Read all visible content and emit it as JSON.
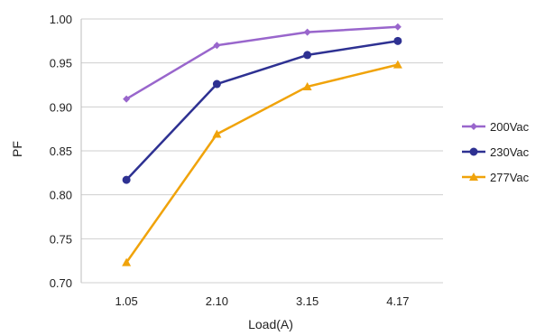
{
  "chart_data": {
    "type": "line",
    "title": "",
    "xlabel": "Load(A)",
    "ylabel": "PF",
    "categories": [
      "1.05",
      "2.10",
      "3.15",
      "4.17"
    ],
    "ylim": [
      0.7,
      1.0
    ],
    "yticks": [
      "0.70",
      "0.75",
      "0.80",
      "0.85",
      "0.90",
      "0.95",
      "1.00"
    ],
    "grid": true,
    "legend_position": "right",
    "series": [
      {
        "name": "200Vac",
        "values": [
          0.909,
          0.97,
          0.985,
          0.991
        ],
        "color": "#9966cc",
        "marker": "diamond"
      },
      {
        "name": "230Vac",
        "values": [
          0.817,
          0.926,
          0.959,
          0.975
        ],
        "color": "#2e3192",
        "marker": "circle"
      },
      {
        "name": "277Vac",
        "values": [
          0.723,
          0.869,
          0.923,
          0.948
        ],
        "color": "#f0a30a",
        "marker": "triangle"
      }
    ]
  }
}
